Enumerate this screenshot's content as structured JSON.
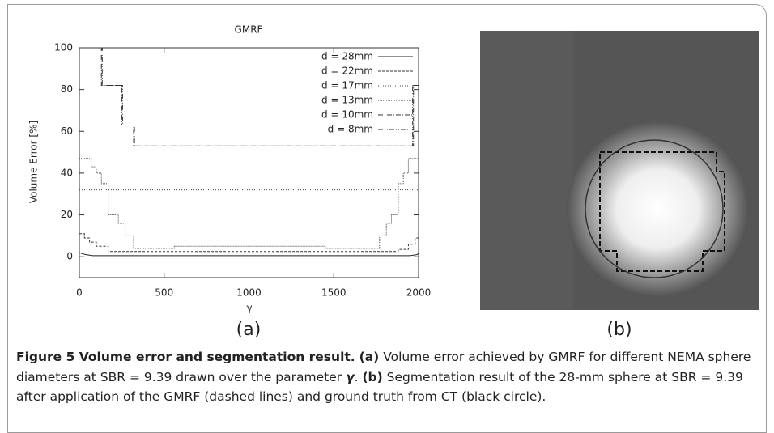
{
  "chart_data": {
    "type": "line",
    "title": "GMRF",
    "x_label": "γ",
    "y_label": "Volume Error [%]",
    "xlim": [
      0,
      2000
    ],
    "xticks": [
      0,
      500,
      1000,
      1500,
      2000
    ],
    "ylim": [
      -10,
      100
    ],
    "yticks": [
      0,
      20,
      40,
      60,
      80,
      100
    ],
    "grid": false,
    "legend": "upper-right",
    "series": [
      {
        "name": "d = 28mm",
        "color": "#222222",
        "dash": "none",
        "x": [
          0,
          15,
          40,
          80,
          1950,
          1990,
          2000
        ],
        "values": [
          2,
          1.5,
          1,
          0.5,
          0.5,
          1,
          1.5
        ]
      },
      {
        "name": "d = 22mm",
        "color": "#333333",
        "dash": "3 2",
        "x": [
          0,
          30,
          30,
          60,
          60,
          100,
          100,
          170,
          170,
          1880,
          1880,
          1940,
          1940,
          1980,
          1980,
          2000
        ],
        "values": [
          11,
          11,
          9,
          9,
          7,
          7,
          5,
          5,
          2.5,
          2.5,
          3.5,
          3.5,
          6,
          6,
          9,
          9
        ]
      },
      {
        "name": "d = 17mm",
        "color": "#444444",
        "dash": "1 2",
        "x": [
          0,
          2000
        ],
        "values": [
          32,
          32
        ]
      },
      {
        "name": "d = 13mm",
        "color": "#444444",
        "dash": "1 1",
        "x": [
          0,
          70,
          70,
          100,
          100,
          130,
          130,
          170,
          170,
          230,
          230,
          270,
          270,
          320,
          320,
          560,
          560,
          1450,
          1450,
          1770,
          1770,
          1810,
          1810,
          1840,
          1840,
          1880,
          1880,
          1910,
          1910,
          1940,
          1940,
          2000
        ],
        "values": [
          47,
          47,
          43,
          43,
          40,
          40,
          35,
          35,
          20,
          20,
          16,
          16,
          10,
          10,
          4,
          4,
          5,
          5,
          4,
          4,
          10,
          10,
          16,
          16,
          20,
          20,
          35,
          35,
          40,
          40,
          47,
          47
        ]
      },
      {
        "name": "d = 10mm",
        "color": "#333333",
        "dash": "6 2 1 2",
        "x": [
          120,
          130,
          130,
          250,
          250,
          320,
          320,
          1970,
          1970,
          2000
        ],
        "values": [
          100,
          100,
          82,
          82,
          63,
          63,
          53,
          53,
          82,
          82
        ]
      },
      {
        "name": "d = 8mm",
        "color": "#333333",
        "dash": "6 2 1 2 1 2",
        "x": [
          125,
          135,
          135,
          255,
          255,
          325,
          325,
          1965,
          1965,
          2000
        ],
        "values": [
          100,
          100,
          82,
          82,
          63,
          63,
          53,
          53,
          82,
          82
        ]
      }
    ]
  },
  "panels": {
    "a": "(a)",
    "b": "(b)"
  },
  "caption": {
    "title": "Figure 5 Volume error and segmentation result.",
    "a_label": "(a)",
    "a_text": " Volume error achieved by GMRF for different NEMA sphere diameters at SBR = 9.39 drawn over the parameter ",
    "a_symbol": "γ",
    "a_end": ". ",
    "b_label": "(b)",
    "b_text": " Segmentation result of the 28-mm sphere at SBR = 9.39 after application of the GMRF (dashed lines) and ground truth from CT (black circle)."
  }
}
